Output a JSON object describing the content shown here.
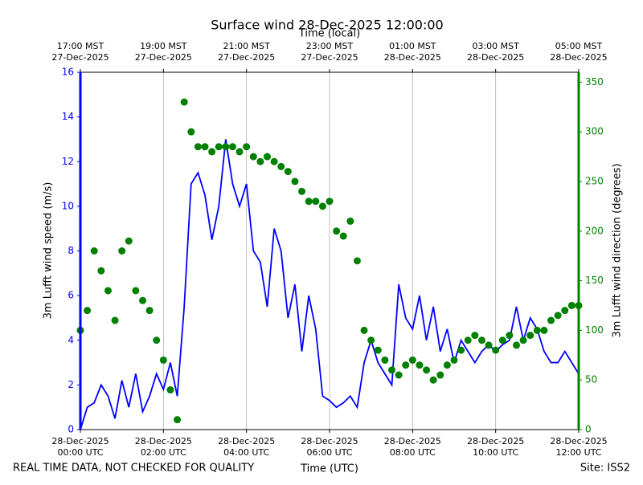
{
  "chart_data": {
    "type": "line",
    "title": "Surface wind 28-Dec-2025 12:00:00",
    "xlabel": "Time (UTC)",
    "x2label": "Time (local)",
    "ylabel": "3m Lufft wind speed (m/s)",
    "y2label": "3m Lufft wind direction (degrees)",
    "footer_left": "REAL TIME DATA, NOT CHECKED FOR QUALITY",
    "footer_right": "Site: ISS2",
    "grid": "x",
    "xlim": [
      "2025-12-28T00:00",
      "2025-12-28T12:00"
    ],
    "xticks": [
      {
        "value": "2025-12-28T00:00",
        "label": "28-Dec-2025\n00:00 UTC"
      },
      {
        "value": "2025-12-28T02:00",
        "label": "28-Dec-2025\n02:00 UTC"
      },
      {
        "value": "2025-12-28T04:00",
        "label": "28-Dec-2025\n04:00 UTC"
      },
      {
        "value": "2025-12-28T06:00",
        "label": "28-Dec-2025\n06:00 UTC"
      },
      {
        "value": "2025-12-28T08:00",
        "label": "28-Dec-2025\n08:00 UTC"
      },
      {
        "value": "2025-12-28T10:00",
        "label": "28-Dec-2025\n10:00 UTC"
      },
      {
        "value": "2025-12-28T12:00",
        "label": "28-Dec-2025\n12:00 UTC"
      }
    ],
    "x2ticks": [
      {
        "value": "2025-12-28T00:00",
        "label": "17:00 MST\n27-Dec-2025"
      },
      {
        "value": "2025-12-28T02:00",
        "label": "19:00 MST\n27-Dec-2025"
      },
      {
        "value": "2025-12-28T04:00",
        "label": "21:00 MST\n27-Dec-2025"
      },
      {
        "value": "2025-12-28T06:00",
        "label": "23:00 MST\n27-Dec-2025"
      },
      {
        "value": "2025-12-28T08:00",
        "label": "01:00 MST\n28-Dec-2025"
      },
      {
        "value": "2025-12-28T10:00",
        "label": "03:00 MST\n28-Dec-2025"
      },
      {
        "value": "2025-12-28T12:00",
        "label": "05:00 MST\n28-Dec-2025"
      }
    ],
    "ylim": [
      0,
      16
    ],
    "yticks": [
      0,
      2,
      4,
      6,
      8,
      10,
      12,
      14,
      16
    ],
    "ycolor": "#0000ff",
    "y2lim": [
      0,
      360
    ],
    "y2ticks": [
      0,
      50,
      100,
      150,
      200,
      250,
      300,
      350
    ],
    "y2color": "#008000",
    "x": [
      "2025-12-28T00:00",
      "2025-12-28T00:10",
      "2025-12-28T00:20",
      "2025-12-28T00:30",
      "2025-12-28T00:40",
      "2025-12-28T00:50",
      "2025-12-28T01:00",
      "2025-12-28T01:10",
      "2025-12-28T01:20",
      "2025-12-28T01:30",
      "2025-12-28T01:40",
      "2025-12-28T01:50",
      "2025-12-28T02:00",
      "2025-12-28T02:10",
      "2025-12-28T02:20",
      "2025-12-28T02:30",
      "2025-12-28T02:40",
      "2025-12-28T02:50",
      "2025-12-28T03:00",
      "2025-12-28T03:10",
      "2025-12-28T03:20",
      "2025-12-28T03:30",
      "2025-12-28T03:40",
      "2025-12-28T03:50",
      "2025-12-28T04:00",
      "2025-12-28T04:10",
      "2025-12-28T04:20",
      "2025-12-28T04:30",
      "2025-12-28T04:40",
      "2025-12-28T04:50",
      "2025-12-28T05:00",
      "2025-12-28T05:10",
      "2025-12-28T05:20",
      "2025-12-28T05:30",
      "2025-12-28T05:40",
      "2025-12-28T05:50",
      "2025-12-28T06:00",
      "2025-12-28T06:10",
      "2025-12-28T06:20",
      "2025-12-28T06:30",
      "2025-12-28T06:40",
      "2025-12-28T06:50",
      "2025-12-28T07:00",
      "2025-12-28T07:10",
      "2025-12-28T07:20",
      "2025-12-28T07:30",
      "2025-12-28T07:40",
      "2025-12-28T07:50",
      "2025-12-28T08:00",
      "2025-12-28T08:10",
      "2025-12-28T08:20",
      "2025-12-28T08:30",
      "2025-12-28T08:40",
      "2025-12-28T08:50",
      "2025-12-28T09:00",
      "2025-12-28T09:10",
      "2025-12-28T09:20",
      "2025-12-28T09:30",
      "2025-12-28T09:40",
      "2025-12-28T09:50",
      "2025-12-28T10:00",
      "2025-12-28T10:10",
      "2025-12-28T10:20",
      "2025-12-28T10:30",
      "2025-12-28T10:40",
      "2025-12-28T10:50",
      "2025-12-28T11:00",
      "2025-12-28T11:10",
      "2025-12-28T11:20",
      "2025-12-28T11:30",
      "2025-12-28T11:40",
      "2025-12-28T11:50",
      "2025-12-28T12:00"
    ],
    "series": [
      {
        "type": "line",
        "color": "#0000ff",
        "values": [
          0,
          1.0,
          1.2,
          2.0,
          1.5,
          0.5,
          2.2,
          1.0,
          2.5,
          0.8,
          1.5,
          2.5,
          1.8,
          3.0,
          1.5,
          5.5,
          11.0,
          11.5,
          10.5,
          8.5,
          10.0,
          13.0,
          11.0,
          10.0,
          11.0,
          8.0,
          7.5,
          5.5,
          9.0,
          8.0,
          5.0,
          6.5,
          3.5,
          6.0,
          4.5,
          1.5,
          1.3,
          1.0,
          1.2,
          1.5,
          1.0,
          3.0,
          4.0,
          3.0,
          2.5,
          2.0,
          6.5,
          5.0,
          4.5,
          6.0,
          4.0,
          5.5,
          3.5,
          4.5,
          3.0,
          4.0,
          3.5,
          3.0,
          3.5,
          3.8,
          3.5,
          3.8,
          4.0,
          5.5,
          4.0,
          5.0,
          4.5,
          3.5,
          3.0,
          3.0,
          3.5,
          3.0,
          2.5
        ]
      },
      {
        "type": "scatter",
        "axis": "y2",
        "color": "#008000",
        "values": [
          100,
          120,
          180,
          160,
          140,
          110,
          180,
          190,
          140,
          130,
          120,
          90,
          70,
          40,
          10,
          330,
          300,
          285,
          285,
          280,
          285,
          285,
          285,
          280,
          285,
          275,
          270,
          275,
          270,
          265,
          260,
          250,
          240,
          230,
          230,
          225,
          230,
          200,
          195,
          210,
          170,
          100,
          90,
          80,
          70,
          60,
          55,
          65,
          70,
          65,
          60,
          50,
          55,
          65,
          70,
          80,
          90,
          95,
          90,
          85,
          80,
          90,
          95,
          85,
          90,
          95,
          100,
          100,
          110,
          115,
          120,
          125,
          125
        ]
      }
    ]
  }
}
